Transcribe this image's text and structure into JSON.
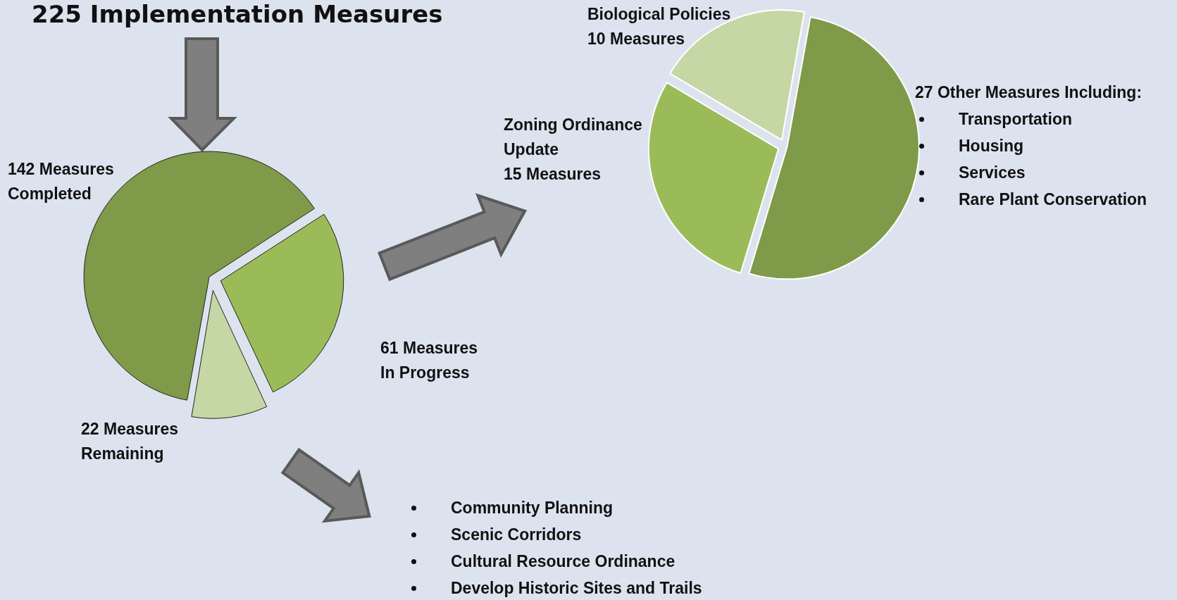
{
  "chart_data": [
    {
      "type": "pie",
      "title": "225 Implementation Measures",
      "categories": [
        "142 Measures\nCompleted",
        "61 Measures\nIn Progress",
        "22 Measures\nRemaining"
      ],
      "values": [
        142,
        61,
        22
      ],
      "colors": [
        "#7f9a48",
        "#9bbb59",
        "#c4d7a4"
      ],
      "legend": false,
      "annotations": [
        "Community Planning",
        "Scenic Corridors",
        "Cultural Resource Ordinance",
        "Develop Historic Sites and Trails"
      ]
    },
    {
      "type": "pie",
      "categories": [
        null,
        "Zoning Ordinance\nUpdate\n15 Measures",
        "Biological Policies\n10 Measures"
      ],
      "values": [
        27,
        15,
        10
      ],
      "colors": [
        "#7f9a48",
        "#9bbb59",
        "#c4d7a4"
      ],
      "legend": false,
      "annotations": [
        "27 Other Measures Including:",
        "Transportation",
        "Housing",
        "Services",
        "Rare Plant Conservation"
      ]
    }
  ]
}
